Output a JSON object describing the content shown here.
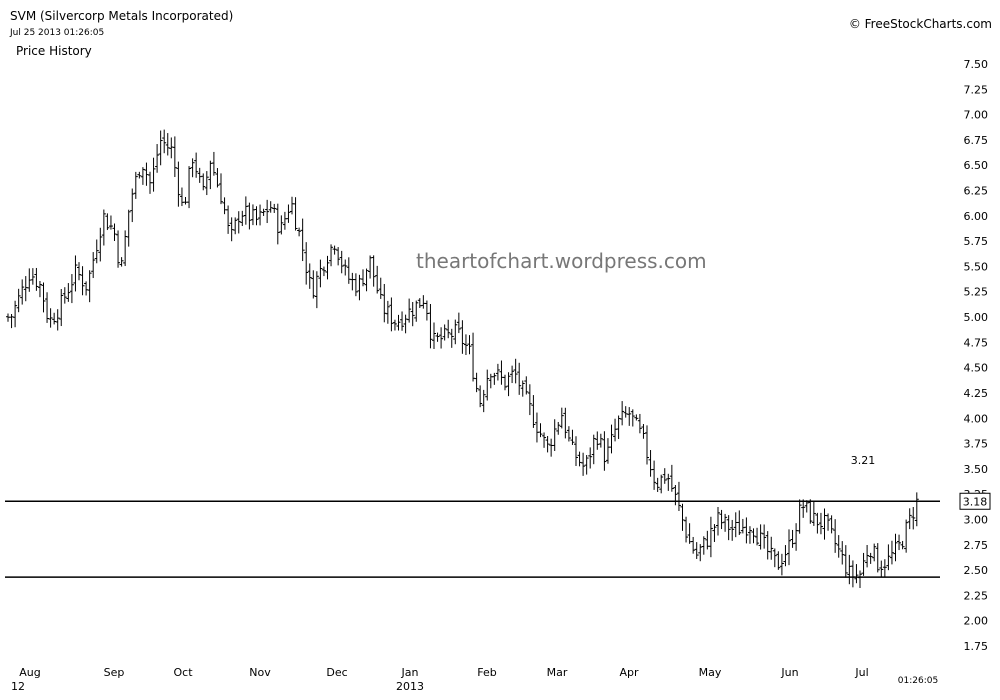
{
  "header": {
    "title": "SVM (Silvercorp Metals Incorporated)",
    "timestamp": "Jul 25 2013 01:26:05",
    "panel_label": "Price History",
    "brand": "© FreeStockCharts.com",
    "watermark": "theartofchart.wordpress.com"
  },
  "chart_data": {
    "type": "bar",
    "subtype": "ohlc-price-bars",
    "title": "SVM (Silvercorp Metals Incorporated)",
    "ylim": [
      1.75,
      7.5
    ],
    "y_ticks": [
      "7.50",
      "7.25",
      "7.00",
      "6.75",
      "6.50",
      "6.25",
      "6.00",
      "5.75",
      "5.50",
      "5.25",
      "5.00",
      "4.75",
      "4.50",
      "4.25",
      "4.00",
      "3.75",
      "3.50",
      "3.25",
      "3.00",
      "2.75",
      "2.50",
      "2.25",
      "2.00",
      "1.75"
    ],
    "x_ticks": [
      "Aug",
      "Sep",
      "Oct",
      "Nov",
      "Dec",
      "Jan",
      "Feb",
      "Mar",
      "Apr",
      "May",
      "Jun",
      "Jul"
    ],
    "x_ticks_sub": [
      [
        "Aug",
        "12"
      ],
      [
        "Jan",
        "2013"
      ]
    ],
    "x_time_label": "01:26:05",
    "last_price_label": "3.18",
    "annotation": "3.21",
    "horizontal_lines": [
      3.18,
      2.43
    ],
    "grid": false,
    "series": [
      {
        "months": [
          "Aug",
          "Sep",
          "Oct",
          "Nov",
          "Dec",
          "Jan",
          "Feb",
          "Mar",
          "Apr",
          "May",
          "Jun",
          "Jul"
        ],
        "price_path": [
          [
            "2012-07-25",
            5.0
          ],
          [
            "2012-08-01",
            5.45
          ],
          [
            "2012-08-05",
            5.3
          ],
          [
            "2012-08-08",
            4.95
          ],
          [
            "2012-08-12",
            5.1
          ],
          [
            "2012-08-18",
            5.45
          ],
          [
            "2012-08-22",
            5.3
          ],
          [
            "2012-08-28",
            6.0
          ],
          [
            "2012-09-01",
            5.85
          ],
          [
            "2012-09-04",
            5.45
          ],
          [
            "2012-09-08",
            6.15
          ],
          [
            "2012-09-13",
            6.55
          ],
          [
            "2012-09-17",
            6.3
          ],
          [
            "2012-09-21",
            6.75
          ],
          [
            "2012-09-26",
            6.65
          ],
          [
            "2012-10-01",
            6.05
          ],
          [
            "2012-10-05",
            6.6
          ],
          [
            "2012-10-09",
            6.2
          ],
          [
            "2012-10-12",
            6.55
          ],
          [
            "2012-10-17",
            6.15
          ],
          [
            "2012-10-20",
            5.75
          ],
          [
            "2012-10-24",
            6.05
          ],
          [
            "2012-10-31",
            5.95
          ],
          [
            "2012-11-05",
            6.1
          ],
          [
            "2012-11-09",
            5.85
          ],
          [
            "2012-11-13",
            6.15
          ],
          [
            "2012-11-17",
            5.75
          ],
          [
            "2012-11-21",
            5.25
          ],
          [
            "2012-11-26",
            5.55
          ],
          [
            "2012-11-30",
            5.75
          ],
          [
            "2012-12-05",
            5.4
          ],
          [
            "2012-12-10",
            5.3
          ],
          [
            "2012-12-15",
            5.55
          ],
          [
            "2012-12-20",
            5.1
          ],
          [
            "2012-12-26",
            4.95
          ],
          [
            "2013-01-03",
            5.1
          ],
          [
            "2013-01-07",
            5.2
          ],
          [
            "2013-01-10",
            4.75
          ],
          [
            "2013-01-15",
            4.8
          ],
          [
            "2013-01-20",
            4.85
          ],
          [
            "2013-01-25",
            4.65
          ],
          [
            "2013-01-29",
            4.15
          ],
          [
            "2013-02-02",
            4.5
          ],
          [
            "2013-02-08",
            4.35
          ],
          [
            "2013-02-12",
            4.45
          ],
          [
            "2013-02-18",
            4.1
          ],
          [
            "2013-02-25",
            3.7
          ],
          [
            "2013-03-03",
            4.05
          ],
          [
            "2013-03-07",
            3.7
          ],
          [
            "2013-03-13",
            3.5
          ],
          [
            "2013-03-18",
            3.85
          ],
          [
            "2013-03-22",
            3.6
          ],
          [
            "2013-03-27",
            3.95
          ],
          [
            "2013-04-01",
            4.05
          ],
          [
            "2013-04-06",
            3.8
          ],
          [
            "2013-04-11",
            3.35
          ],
          [
            "2013-04-15",
            3.45
          ],
          [
            "2013-04-19",
            3.15
          ],
          [
            "2013-04-23",
            2.8
          ],
          [
            "2013-04-26",
            2.65
          ],
          [
            "2013-04-30",
            2.8
          ],
          [
            "2013-05-04",
            3.0
          ],
          [
            "2013-05-10",
            2.9
          ],
          [
            "2013-05-17",
            2.95
          ],
          [
            "2013-05-24",
            2.65
          ],
          [
            "2013-05-27",
            2.55
          ],
          [
            "2013-06-01",
            2.75
          ],
          [
            "2013-06-06",
            3.15
          ],
          [
            "2013-06-11",
            3.0
          ],
          [
            "2013-06-16",
            2.95
          ],
          [
            "2013-06-21",
            2.7
          ],
          [
            "2013-06-26",
            2.45
          ],
          [
            "2013-06-30",
            2.45
          ],
          [
            "2013-07-04",
            2.75
          ],
          [
            "2013-07-08",
            2.55
          ],
          [
            "2013-07-12",
            2.6
          ],
          [
            "2013-07-17",
            2.75
          ],
          [
            "2013-07-21",
            3.0
          ],
          [
            "2013-07-24",
            3.18
          ]
        ]
      }
    ]
  }
}
